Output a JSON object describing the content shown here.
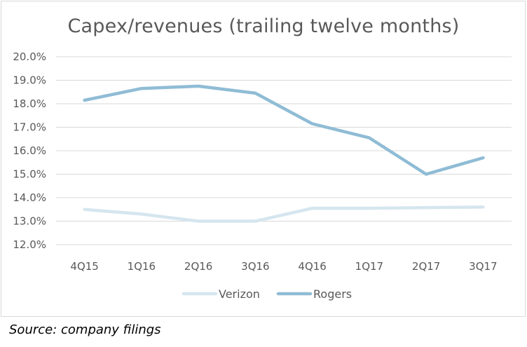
{
  "chart_data": {
    "type": "line",
    "title": "Capex/revenues  (trailing twelve months)",
    "categories": [
      "4Q15",
      "1Q16",
      "2Q16",
      "3Q16",
      "4Q16",
      "1Q17",
      "2Q17",
      "3Q17"
    ],
    "ylim": [
      12.0,
      20.0
    ],
    "yticks": [
      12.0,
      13.0,
      14.0,
      15.0,
      16.0,
      17.0,
      18.0,
      19.0,
      20.0
    ],
    "ytick_labels": [
      "12.0%",
      "13.0%",
      "14.0%",
      "15.0%",
      "16.0%",
      "17.0%",
      "18.0%",
      "19.0%",
      "20.0%"
    ],
    "grid": true,
    "legend_position": "bottom",
    "series": [
      {
        "name": "Verizon",
        "color": "#d6e6ef",
        "values": [
          13.5,
          13.3,
          13.0,
          13.0,
          13.55,
          13.55,
          13.58,
          13.6
        ]
      },
      {
        "name": "Rogers",
        "color": "#8fbcd5",
        "values": [
          18.15,
          18.65,
          18.75,
          18.45,
          17.15,
          16.55,
          15.0,
          15.7
        ]
      }
    ]
  },
  "footer": {
    "source": "Source: company filings"
  }
}
